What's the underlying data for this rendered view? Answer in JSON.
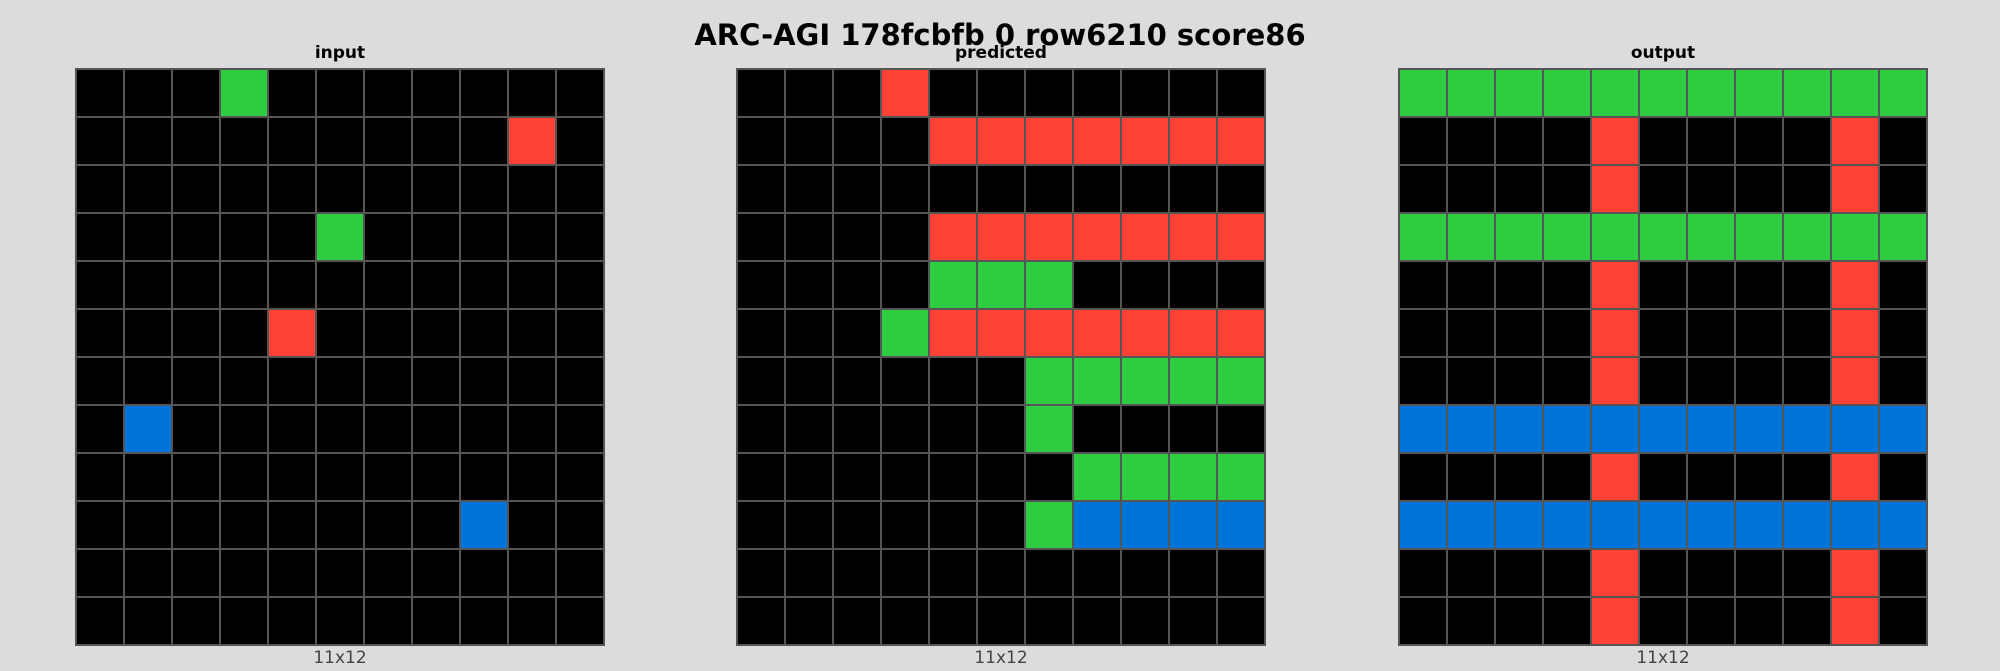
{
  "title": "ARC-AGI 178fcbfb 0 row6210 score86",
  "palette": {
    "0": "#000000",
    "1": "#0074D9",
    "2": "#FF4136",
    "3": "#2ECC40"
  },
  "panels": [
    {
      "name": "input",
      "title": "input",
      "size_label": "11x12",
      "rows": [
        [
          0,
          0,
          0,
          3,
          0,
          0,
          0,
          0,
          0,
          0,
          0
        ],
        [
          0,
          0,
          0,
          0,
          0,
          0,
          0,
          0,
          0,
          2,
          0
        ],
        [
          0,
          0,
          0,
          0,
          0,
          0,
          0,
          0,
          0,
          0,
          0
        ],
        [
          0,
          0,
          0,
          0,
          0,
          3,
          0,
          0,
          0,
          0,
          0
        ],
        [
          0,
          0,
          0,
          0,
          0,
          0,
          0,
          0,
          0,
          0,
          0
        ],
        [
          0,
          0,
          0,
          0,
          2,
          0,
          0,
          0,
          0,
          0,
          0
        ],
        [
          0,
          0,
          0,
          0,
          0,
          0,
          0,
          0,
          0,
          0,
          0
        ],
        [
          0,
          1,
          0,
          0,
          0,
          0,
          0,
          0,
          0,
          0,
          0
        ],
        [
          0,
          0,
          0,
          0,
          0,
          0,
          0,
          0,
          0,
          0,
          0
        ],
        [
          0,
          0,
          0,
          0,
          0,
          0,
          0,
          0,
          1,
          0,
          0
        ],
        [
          0,
          0,
          0,
          0,
          0,
          0,
          0,
          0,
          0,
          0,
          0
        ],
        [
          0,
          0,
          0,
          0,
          0,
          0,
          0,
          0,
          0,
          0,
          0
        ]
      ]
    },
    {
      "name": "predicted",
      "title": "predicted",
      "size_label": "11x12",
      "rows": [
        [
          0,
          0,
          0,
          2,
          0,
          0,
          0,
          0,
          0,
          0,
          0
        ],
        [
          0,
          0,
          0,
          0,
          2,
          2,
          2,
          2,
          2,
          2,
          2
        ],
        [
          0,
          0,
          0,
          0,
          0,
          0,
          0,
          0,
          0,
          0,
          0
        ],
        [
          0,
          0,
          0,
          0,
          2,
          2,
          2,
          2,
          2,
          2,
          2
        ],
        [
          0,
          0,
          0,
          0,
          3,
          3,
          3,
          0,
          0,
          0,
          0
        ],
        [
          0,
          0,
          0,
          3,
          2,
          2,
          2,
          2,
          2,
          2,
          2
        ],
        [
          0,
          0,
          0,
          0,
          0,
          0,
          3,
          3,
          3,
          3,
          3
        ],
        [
          0,
          0,
          0,
          0,
          0,
          0,
          3,
          0,
          0,
          0,
          0
        ],
        [
          0,
          0,
          0,
          0,
          0,
          0,
          0,
          3,
          3,
          3,
          3
        ],
        [
          0,
          0,
          0,
          0,
          0,
          0,
          3,
          1,
          1,
          1,
          1
        ],
        [
          0,
          0,
          0,
          0,
          0,
          0,
          0,
          0,
          0,
          0,
          0
        ],
        [
          0,
          0,
          0,
          0,
          0,
          0,
          0,
          0,
          0,
          0,
          0
        ]
      ]
    },
    {
      "name": "output",
      "title": "output",
      "size_label": "11x12",
      "rows": [
        [
          3,
          3,
          3,
          3,
          3,
          3,
          3,
          3,
          3,
          3,
          3
        ],
        [
          0,
          0,
          0,
          0,
          2,
          0,
          0,
          0,
          0,
          2,
          0
        ],
        [
          0,
          0,
          0,
          0,
          2,
          0,
          0,
          0,
          0,
          2,
          0
        ],
        [
          3,
          3,
          3,
          3,
          3,
          3,
          3,
          3,
          3,
          3,
          3
        ],
        [
          0,
          0,
          0,
          0,
          2,
          0,
          0,
          0,
          0,
          2,
          0
        ],
        [
          0,
          0,
          0,
          0,
          2,
          0,
          0,
          0,
          0,
          2,
          0
        ],
        [
          0,
          0,
          0,
          0,
          2,
          0,
          0,
          0,
          0,
          2,
          0
        ],
        [
          1,
          1,
          1,
          1,
          1,
          1,
          1,
          1,
          1,
          1,
          1
        ],
        [
          0,
          0,
          0,
          0,
          2,
          0,
          0,
          0,
          0,
          2,
          0
        ],
        [
          1,
          1,
          1,
          1,
          1,
          1,
          1,
          1,
          1,
          1,
          1
        ],
        [
          0,
          0,
          0,
          0,
          2,
          0,
          0,
          0,
          0,
          2,
          0
        ],
        [
          0,
          0,
          0,
          0,
          2,
          0,
          0,
          0,
          0,
          2,
          0
        ]
      ]
    }
  ]
}
